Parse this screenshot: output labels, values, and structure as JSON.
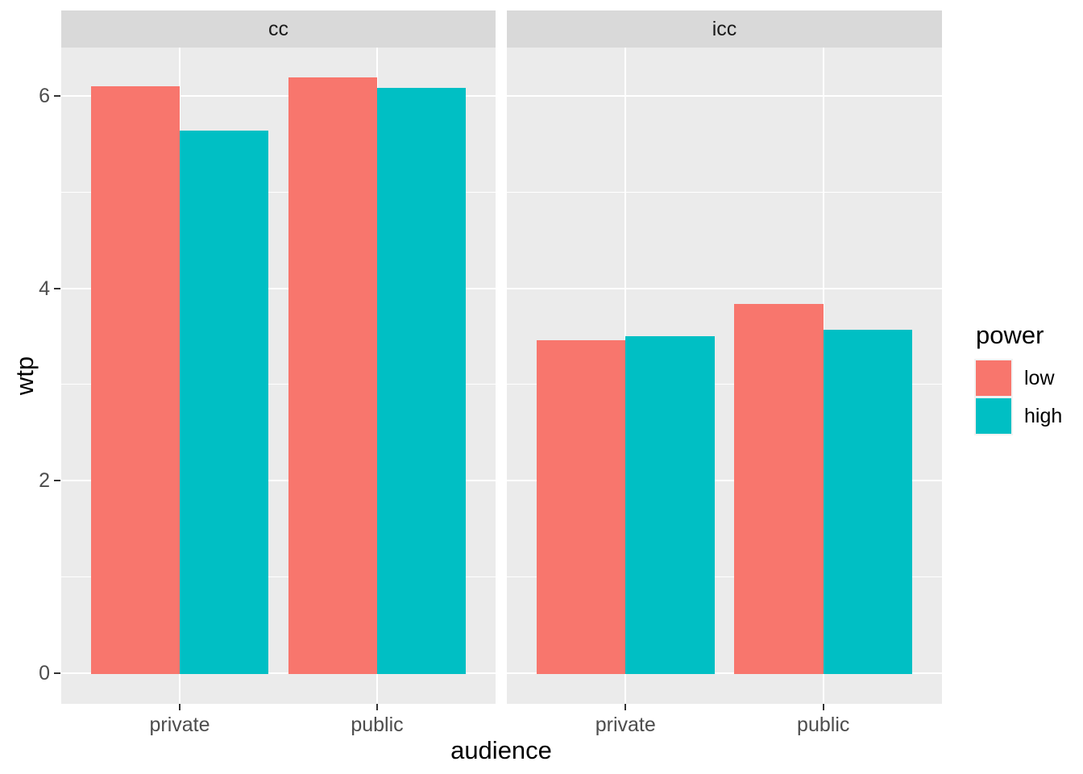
{
  "chart_data": {
    "type": "bar",
    "facets": [
      "cc",
      "icc"
    ],
    "categories": [
      "private",
      "public"
    ],
    "series": [
      {
        "name": "low",
        "color": "#F8766D",
        "values": {
          "cc": [
            6.1,
            6.19
          ],
          "icc": [
            3.46,
            3.84
          ]
        }
      },
      {
        "name": "high",
        "color": "#00BFC4",
        "values": {
          "cc": [
            5.64,
            6.08
          ],
          "icc": [
            3.5,
            3.57
          ]
        }
      }
    ],
    "title": "",
    "xlabel": "audience",
    "ylabel": "wtp",
    "x_tick_labels": [
      "private",
      "public"
    ],
    "y_tick_labels": [
      "0",
      "2",
      "4",
      "6"
    ],
    "y_major_breaks": [
      0,
      2,
      4,
      6
    ],
    "y_minor_breaks": [
      1,
      3,
      5
    ],
    "ylim": [
      -0.32,
      6.5
    ],
    "grid": "on",
    "legend_position": "right",
    "colors": {
      "panel_background": "#EBEBEB",
      "strip_background": "#D9D9D9",
      "gridline": "#FFFFFF",
      "axis_text": "#4D4D4D",
      "strip_text": "#1A1A1A",
      "tick_mark": "#333333",
      "low": "#F8766D",
      "high": "#00BFC4"
    }
  },
  "legend": {
    "title": "power",
    "items": [
      {
        "label": "low"
      },
      {
        "label": "high"
      }
    ]
  }
}
